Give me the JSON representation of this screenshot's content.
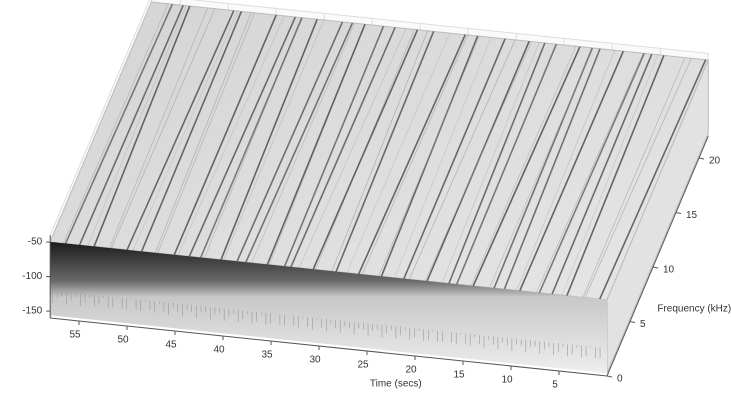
{
  "chart_data": {
    "type": "surface3d",
    "xlabel": "Time (secs)",
    "ylabel": "Frequency (kHz)",
    "xlim": [
      0,
      58
    ],
    "xticks": [
      55,
      50,
      45,
      40,
      35,
      30,
      25,
      20,
      15,
      10,
      5
    ],
    "ylim": [
      0,
      22
    ],
    "yticks": [
      0,
      5,
      10,
      15,
      20
    ],
    "zlim": [
      -160,
      -40
    ],
    "zticks": [
      -50,
      -100,
      -150
    ],
    "grid": true
  }
}
